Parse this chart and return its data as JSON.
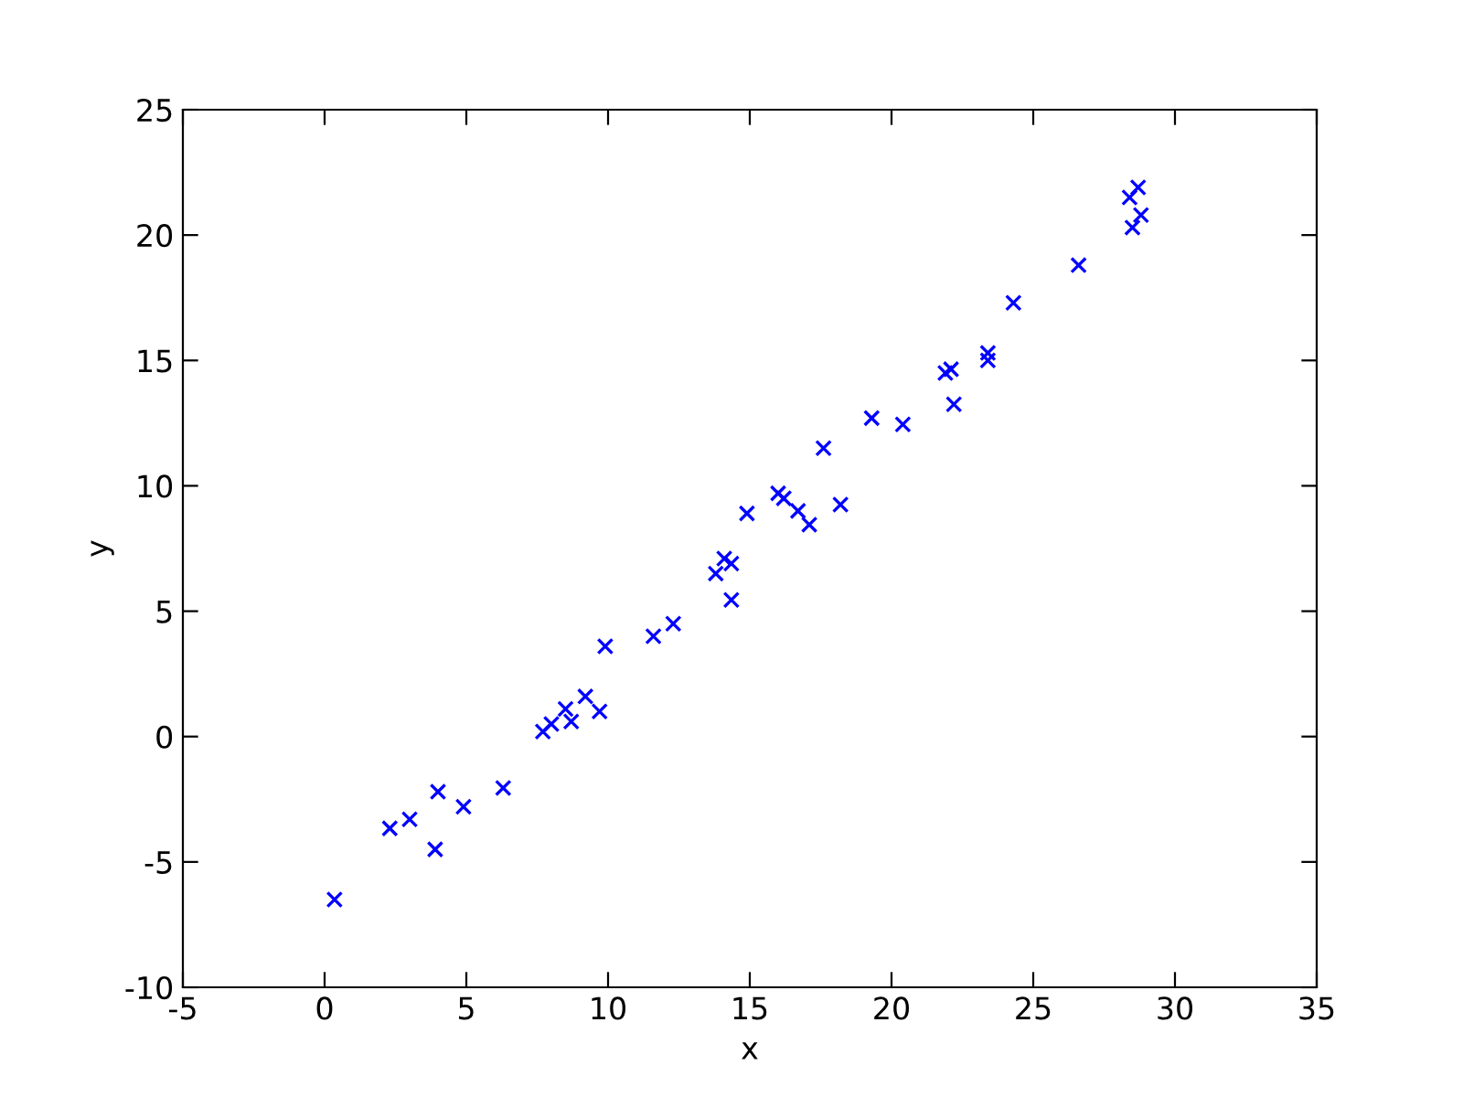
{
  "chart_data": {
    "type": "scatter",
    "xlabel": "x",
    "ylabel": "y",
    "marker": "cross",
    "grid": false,
    "legend": false,
    "xlim": [
      -5,
      35
    ],
    "xticks": [
      -5,
      0,
      5,
      10,
      15,
      20,
      25,
      30,
      35
    ],
    "ylim": [
      -10,
      25
    ],
    "yticks": [
      -10,
      -5,
      0,
      5,
      10,
      15,
      20,
      25
    ],
    "series": [
      {
        "color": "#0000ff",
        "x": [
          0.35,
          2.3,
          3.0,
          3.9,
          4.0,
          4.9,
          6.3,
          7.7,
          8.0,
          8.5,
          8.7,
          9.2,
          9.7,
          9.9,
          11.6,
          12.3,
          13.8,
          14.1,
          14.35,
          14.35,
          14.9,
          16.0,
          16.2,
          16.7,
          17.1,
          17.6,
          18.2,
          19.3,
          20.4,
          21.9,
          22.1,
          22.2,
          23.4,
          23.4,
          24.3,
          26.6,
          28.4,
          28.7,
          28.5,
          28.8
        ],
        "values": [
          -6.5,
          -3.66,
          -3.3,
          -4.5,
          -2.2,
          -2.8,
          -2.05,
          0.2,
          0.5,
          1.1,
          0.6,
          1.6,
          1.0,
          3.6,
          4.0,
          4.5,
          6.5,
          7.1,
          6.9,
          5.45,
          8.9,
          9.7,
          9.5,
          9.0,
          8.45,
          11.5,
          9.25,
          12.7,
          12.45,
          14.5,
          14.65,
          13.25,
          15.3,
          15.0,
          17.3,
          18.8,
          21.5,
          21.9,
          20.3,
          20.8
        ]
      }
    ]
  }
}
